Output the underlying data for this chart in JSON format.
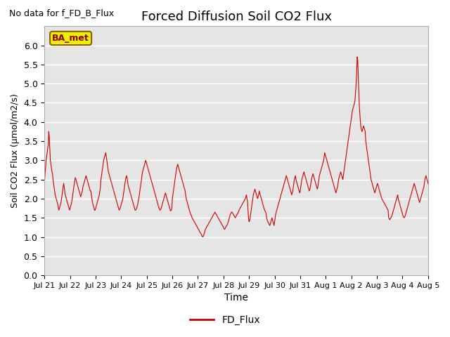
{
  "title": "Forced Diffusion Soil CO2 Flux",
  "xlabel": "Time",
  "ylabel": "Soil CO2 Flux (μmol/m2/s)",
  "no_data_text": "No data for f_FD_B_Flux",
  "legend_label": "FD_Flux",
  "ba_met_label": "BA_met",
  "ylim": [
    0.0,
    6.5
  ],
  "yticks": [
    0.0,
    0.5,
    1.0,
    1.5,
    2.0,
    2.5,
    3.0,
    3.5,
    4.0,
    4.5,
    5.0,
    5.5,
    6.0
  ],
  "line_color": "#cc0000",
  "background_color": "#e5e5e5",
  "x_tick_labels": [
    "Jul 21",
    "Jul 22",
    "Jul 23",
    "Jul 24",
    "Jul 25",
    "Jul 26",
    "Jul 27",
    "Jul 28",
    "Jul 29",
    "Jul 30",
    "Jul 31",
    "Aug 1",
    "Aug 2",
    "Aug 3",
    "Aug 4",
    "Aug 5"
  ],
  "start_day": 20,
  "total_days": 15,
  "interval_minutes": 30,
  "data_y": [
    2.4,
    2.65,
    2.8,
    3.0,
    3.1,
    3.2,
    3.3,
    3.4,
    3.75,
    3.6,
    3.3,
    3.0,
    2.9,
    2.8,
    2.7,
    2.65,
    2.5,
    2.4,
    2.3,
    2.2,
    2.1,
    2.05,
    2.0,
    1.95,
    1.9,
    1.85,
    1.75,
    1.7,
    1.75,
    1.8,
    1.85,
    1.9,
    2.0,
    2.1,
    2.2,
    2.3,
    2.4,
    2.3,
    2.2,
    2.1,
    2.05,
    2.0,
    1.95,
    1.9,
    1.85,
    1.8,
    1.75,
    1.7,
    1.75,
    1.8,
    1.85,
    1.9,
    2.0,
    2.1,
    2.2,
    2.3,
    2.4,
    2.5,
    2.55,
    2.5,
    2.45,
    2.4,
    2.35,
    2.3,
    2.25,
    2.2,
    2.15,
    2.1,
    2.05,
    2.1,
    2.15,
    2.2,
    2.3,
    2.35,
    2.4,
    2.45,
    2.5,
    2.55,
    2.6,
    2.55,
    2.5,
    2.45,
    2.4,
    2.35,
    2.3,
    2.25,
    2.2,
    2.2,
    2.1,
    2.0,
    1.9,
    1.85,
    1.8,
    1.75,
    1.7,
    1.7,
    1.75,
    1.8,
    1.85,
    1.9,
    1.95,
    2.0,
    2.05,
    2.1,
    2.2,
    2.3,
    2.5,
    2.6,
    2.7,
    2.8,
    2.9,
    3.0,
    3.05,
    3.1,
    3.15,
    3.2,
    3.1,
    3.0,
    2.9,
    2.8,
    2.7,
    2.65,
    2.6,
    2.55,
    2.5,
    2.45,
    2.4,
    2.35,
    2.3,
    2.25,
    2.2,
    2.15,
    2.1,
    2.05,
    2.0,
    1.95,
    1.9,
    1.85,
    1.8,
    1.75,
    1.7,
    1.72,
    1.75,
    1.8,
    1.85,
    1.9,
    1.95,
    2.0,
    2.1,
    2.2,
    2.3,
    2.4,
    2.5,
    2.55,
    2.6,
    2.55,
    2.45,
    2.35,
    2.3,
    2.25,
    2.2,
    2.15,
    2.1,
    2.05,
    2.0,
    1.95,
    1.9,
    1.85,
    1.8,
    1.75,
    1.7,
    1.7,
    1.72,
    1.75,
    1.8,
    1.85,
    1.95,
    2.0,
    2.1,
    2.2,
    2.3,
    2.4,
    2.5,
    2.6,
    2.7,
    2.75,
    2.8,
    2.85,
    2.9,
    2.95,
    3.0,
    2.95,
    2.9,
    2.85,
    2.8,
    2.75,
    2.7,
    2.65,
    2.6,
    2.55,
    2.5,
    2.45,
    2.4,
    2.35,
    2.3,
    2.25,
    2.2,
    2.15,
    2.1,
    2.05,
    2.0,
    1.95,
    1.9,
    1.85,
    1.8,
    1.75,
    1.72,
    1.7,
    1.72,
    1.75,
    1.8,
    1.85,
    1.9,
    1.95,
    2.0,
    2.05,
    2.1,
    2.15,
    2.1,
    2.05,
    2.0,
    1.95,
    1.9,
    1.85,
    1.8,
    1.75,
    1.7,
    1.68,
    1.7,
    1.75,
    2.0,
    2.1,
    2.2,
    2.3,
    2.4,
    2.5,
    2.6,
    2.7,
    2.8,
    2.85,
    2.9,
    2.85,
    2.8,
    2.75,
    2.7,
    2.65,
    2.6,
    2.55,
    2.5,
    2.45,
    2.4,
    2.35,
    2.3,
    2.25,
    2.2,
    2.1,
    2.0,
    1.95,
    1.9,
    1.85,
    1.8,
    1.75,
    1.7,
    1.65,
    1.6,
    1.58,
    1.55,
    1.5,
    1.48,
    1.45,
    1.43,
    1.4,
    1.38,
    1.35,
    1.33,
    1.3,
    1.28,
    1.25,
    1.22,
    1.2,
    1.18,
    1.15,
    1.12,
    1.1,
    1.08,
    1.05,
    1.02,
    1.0,
    1.02,
    1.05,
    1.1,
    1.15,
    1.2,
    1.22,
    1.25,
    1.28,
    1.3,
    1.32,
    1.35,
    1.38,
    1.4,
    1.42,
    1.45,
    1.48,
    1.5,
    1.52,
    1.55,
    1.58,
    1.6,
    1.62,
    1.65,
    1.62,
    1.6,
    1.58,
    1.55,
    1.52,
    1.5,
    1.48,
    1.45,
    1.42,
    1.4,
    1.38,
    1.35,
    1.32,
    1.3,
    1.28,
    1.25,
    1.22,
    1.2,
    1.22,
    1.25,
    1.28,
    1.3,
    1.32,
    1.35,
    1.4,
    1.45,
    1.5,
    1.55,
    1.6,
    1.62,
    1.65,
    1.65,
    1.62,
    1.6,
    1.58,
    1.55,
    1.52,
    1.5,
    1.52,
    1.55,
    1.58,
    1.6,
    1.62,
    1.65,
    1.7,
    1.72,
    1.75,
    1.78,
    1.8,
    1.82,
    1.85,
    1.88,
    1.9,
    1.92,
    1.95,
    1.98,
    2.0,
    2.05,
    2.1,
    2.0,
    1.95,
    1.7,
    1.5,
    1.4,
    1.42,
    1.5,
    1.6,
    1.7,
    1.8,
    1.9,
    2.0,
    2.1,
    2.15,
    2.2,
    2.25,
    2.2,
    2.15,
    2.1,
    2.05,
    2.0,
    2.05,
    2.1,
    2.2,
    2.15,
    2.1,
    2.05,
    2.0,
    1.95,
    1.9,
    1.85,
    1.8,
    1.75,
    1.7,
    1.68,
    1.65,
    1.6,
    1.5,
    1.45,
    1.4,
    1.38,
    1.35,
    1.32,
    1.3,
    1.35,
    1.4,
    1.45,
    1.5,
    1.45,
    1.4,
    1.35,
    1.3,
    1.4,
    1.5,
    1.6,
    1.65,
    1.7,
    1.75,
    1.8,
    1.85,
    1.9,
    1.95,
    2.0,
    2.05,
    2.1,
    2.15,
    2.2,
    2.25,
    2.3,
    2.35,
    2.4,
    2.45,
    2.5,
    2.55,
    2.6,
    2.55,
    2.5,
    2.45,
    2.4,
    2.35,
    2.3,
    2.25,
    2.2,
    2.15,
    2.1,
    2.15,
    2.2,
    2.3,
    2.4,
    2.5,
    2.55,
    2.6,
    2.5,
    2.45,
    2.4,
    2.35,
    2.3,
    2.25,
    2.2,
    2.15,
    2.2,
    2.3,
    2.4,
    2.5,
    2.55,
    2.6,
    2.65,
    2.7,
    2.65,
    2.6,
    2.55,
    2.5,
    2.45,
    2.4,
    2.35,
    2.3,
    2.25,
    2.2,
    2.25,
    2.3,
    2.4,
    2.5,
    2.55,
    2.6,
    2.65,
    2.6,
    2.55,
    2.5,
    2.45,
    2.4,
    2.35,
    2.3,
    2.25,
    2.3,
    2.4,
    2.5,
    2.6,
    2.65,
    2.7,
    2.75,
    2.8,
    2.85,
    2.9,
    2.95,
    3.0,
    3.1,
    3.2,
    3.15,
    3.1,
    3.05,
    3.0,
    2.95,
    2.9,
    2.85,
    2.8,
    2.75,
    2.7,
    2.65,
    2.6,
    2.55,
    2.5,
    2.45,
    2.4,
    2.35,
    2.3,
    2.25,
    2.2,
    2.15,
    2.2,
    2.25,
    2.3,
    2.4,
    2.5,
    2.55,
    2.6,
    2.65,
    2.7,
    2.65,
    2.6,
    2.55,
    2.5,
    2.6,
    2.7,
    2.8,
    2.9,
    3.0,
    3.1,
    3.2,
    3.3,
    3.4,
    3.5,
    3.6,
    3.7,
    3.8,
    3.9,
    4.0,
    4.1,
    4.2,
    4.3,
    4.35,
    4.4,
    4.45,
    4.5,
    4.6,
    4.8,
    5.0,
    5.3,
    5.7,
    5.6,
    5.2,
    4.8,
    4.4,
    4.2,
    4.0,
    3.85,
    3.8,
    3.75,
    3.8,
    3.85,
    3.9,
    3.85,
    3.8,
    3.75,
    3.5,
    3.4,
    3.3,
    3.2,
    3.1,
    3.0,
    2.9,
    2.8,
    2.7,
    2.6,
    2.5,
    2.45,
    2.4,
    2.35,
    2.3,
    2.25,
    2.2,
    2.15,
    2.2,
    2.25,
    2.3,
    2.35,
    2.4,
    2.35,
    2.3,
    2.25,
    2.2,
    2.15,
    2.1,
    2.05,
    2.0,
    1.98,
    1.95,
    1.92,
    1.9,
    1.88,
    1.85,
    1.82,
    1.8,
    1.78,
    1.75,
    1.72,
    1.7,
    1.5,
    1.48,
    1.45,
    1.48,
    1.5,
    1.52,
    1.55,
    1.6,
    1.65,
    1.7,
    1.75,
    1.8,
    1.85,
    1.9,
    1.95,
    2.0,
    2.05,
    2.1,
    2.0,
    1.95,
    1.9,
    1.85,
    1.8,
    1.75,
    1.7,
    1.65,
    1.6,
    1.55,
    1.52,
    1.5,
    1.52,
    1.55,
    1.6,
    1.65,
    1.7,
    1.75,
    1.8,
    1.85,
    1.9,
    1.95,
    2.0,
    2.05,
    2.1,
    2.15,
    2.2,
    2.25,
    2.3,
    2.35,
    2.4,
    2.35,
    2.3,
    2.25,
    2.2,
    2.15,
    2.1,
    2.05,
    2.0,
    1.95,
    1.9,
    1.95,
    2.0,
    2.05,
    2.1,
    2.15,
    2.2,
    2.25,
    2.3,
    2.4,
    2.5,
    2.55,
    2.6,
    2.55,
    2.5,
    2.45,
    2.4,
    2.35,
    2.3,
    2.25,
    2.2,
    2.15,
    2.1,
    2.05,
    2.1,
    2.15,
    2.2,
    2.25,
    2.3,
    2.4,
    2.5,
    2.6
  ]
}
